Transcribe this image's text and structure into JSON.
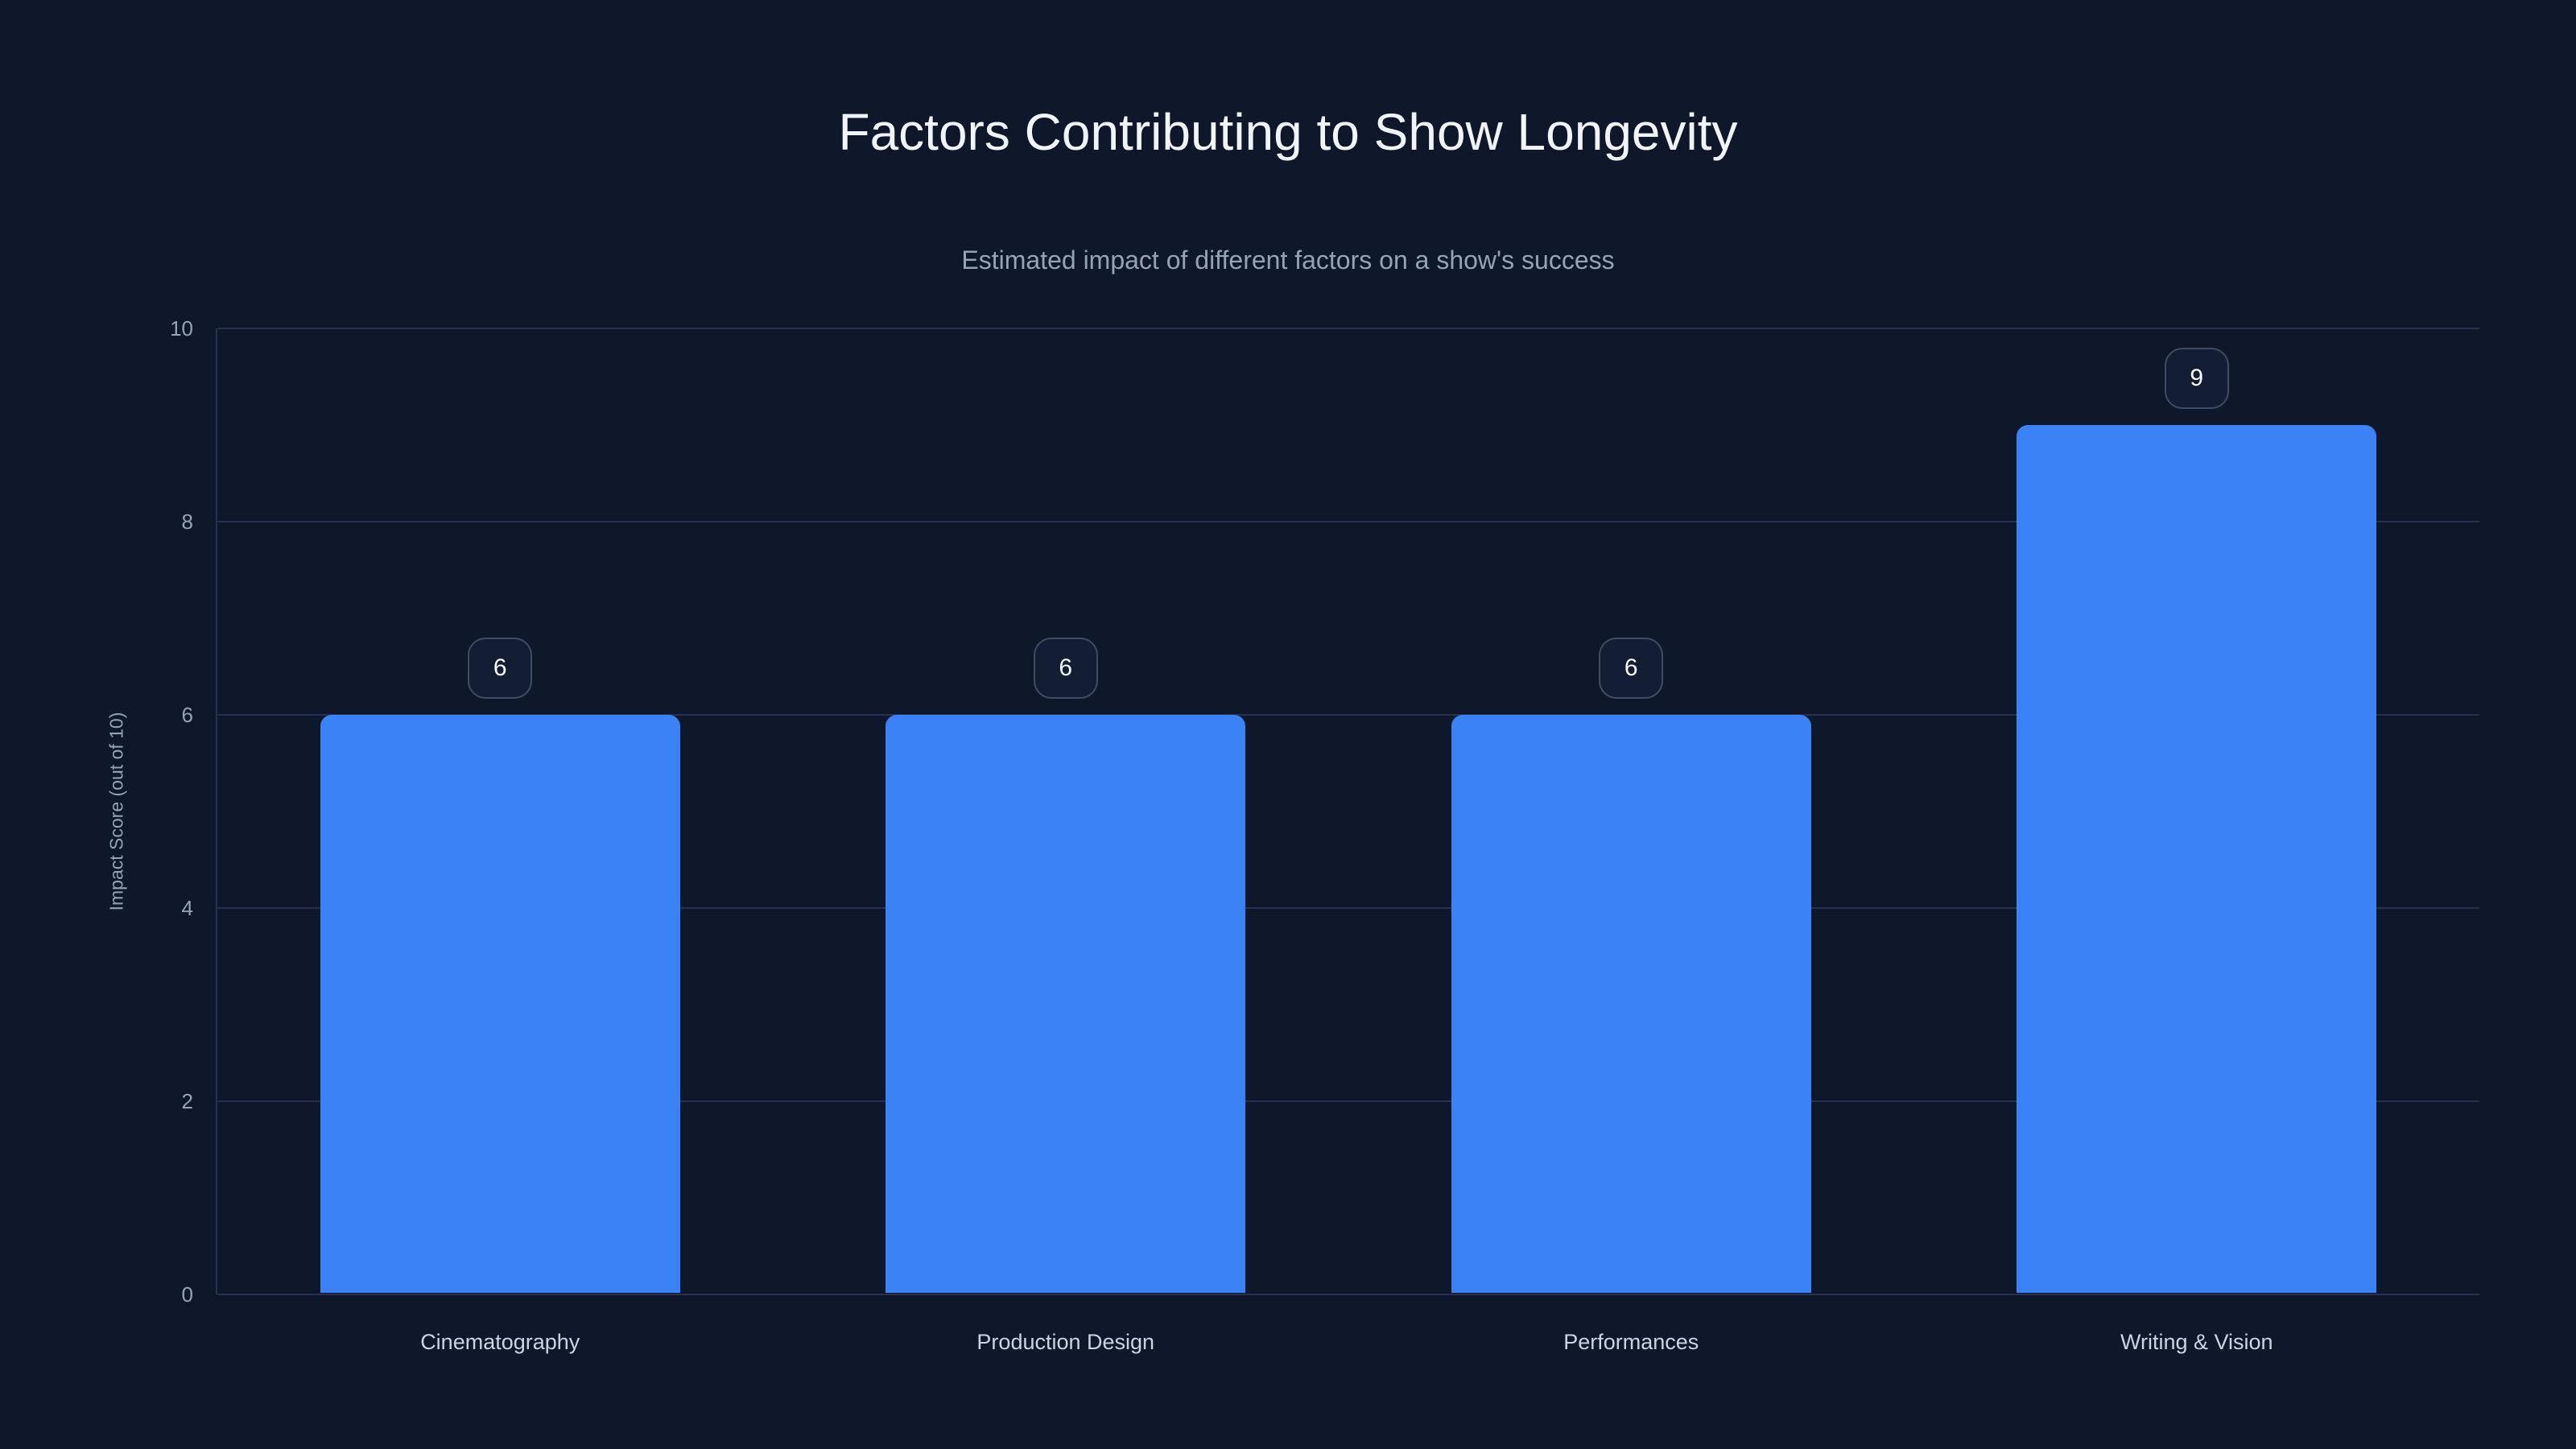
{
  "chart_data": {
    "type": "bar",
    "title": "Factors Contributing to Show Longevity",
    "subtitle": "Estimated impact of different factors on a show's success",
    "categories": [
      "Cinematography",
      "Production Design",
      "Performances",
      "Writing & Vision"
    ],
    "values": [
      6,
      6,
      6,
      9
    ],
    "value_labels": [
      "6",
      "6",
      "6",
      "9"
    ],
    "xlabel": "",
    "ylabel": "Impact Score (out of 10)",
    "ylim": [
      0,
      10
    ],
    "yticks": [
      0,
      2,
      4,
      6,
      8,
      10
    ],
    "grid": true,
    "legend": false,
    "bar_color": "#3b82f6"
  },
  "colors": {
    "background": "#0f172a",
    "bar": "#3b82f6",
    "title": "#f1f5f9",
    "subtitle": "#94a3b8",
    "tick_label": "#94a3b8",
    "category_label": "#cbd5e1",
    "axis_label": "#94a3b8",
    "gridline": "#273250",
    "axis_line": "#273250",
    "value_text": "#f8fafc",
    "value_box_border": "#3f4c66",
    "value_box_bg": "#131d34"
  }
}
